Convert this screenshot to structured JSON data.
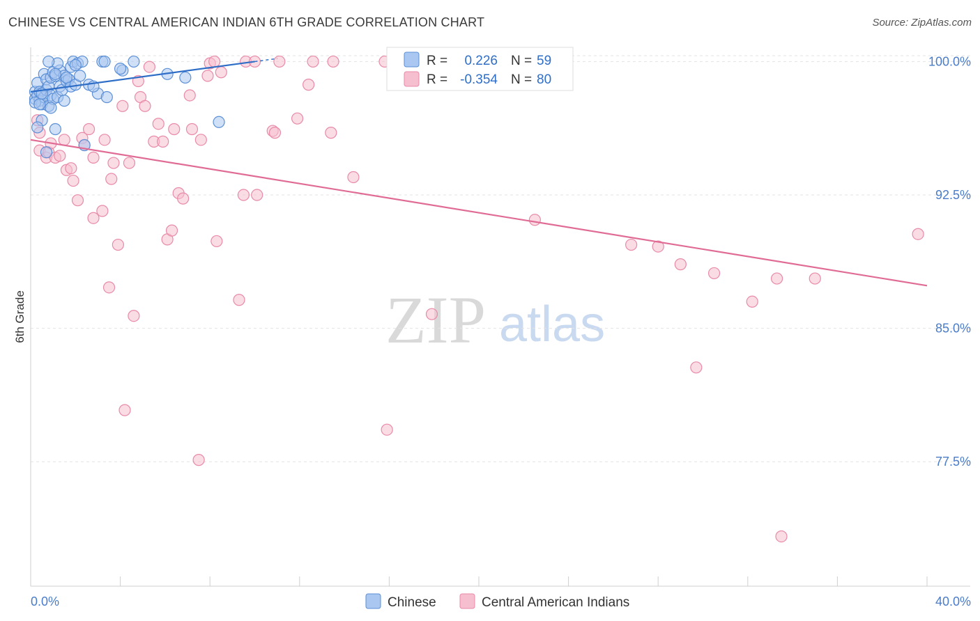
{
  "title": "CHINESE VS CENTRAL AMERICAN INDIAN 6TH GRADE CORRELATION CHART",
  "source": "Source: ZipAtlas.com",
  "colors": {
    "chinese_fill": "#a9c7f0",
    "chinese_stroke": "#5b8fd6",
    "chinese_line": "#2f6ec7",
    "cai_fill": "#f6bfd0",
    "cai_stroke": "#e88aa8",
    "cai_line": "#e06b95",
    "grid": "#e3e3e3",
    "axis_text": "#4a7cc9"
  },
  "watermark": {
    "zip": "ZIP",
    "atlas": "atlas"
  },
  "legend": {
    "r_label": "R =",
    "n_label": "N =",
    "chinese": {
      "r": "0.226",
      "n": "59"
    },
    "cai": {
      "r": "-0.354",
      "n": "80"
    }
  },
  "bottom_legend": [
    "Chinese",
    "Central American Indians"
  ],
  "chart_data": {
    "type": "scatter",
    "xlabel": "",
    "ylabel": "6th Grade",
    "xlim": [
      0,
      40
    ],
    "ylim": [
      70.5,
      100.8
    ],
    "x_tick_labels": [
      "0.0%",
      "40.0%"
    ],
    "y_ticks": [
      77.5,
      85.0,
      92.5,
      100.0
    ],
    "y_tick_labels": [
      "77.5%",
      "85.0%",
      "92.5%",
      "100.0%"
    ],
    "grid": true,
    "series": [
      {
        "name": "Chinese",
        "trend": {
          "x": [
            0.0,
            10.0
          ],
          "y": [
            98.3,
            100.0
          ]
        },
        "points": [
          [
            0.2,
            98.3
          ],
          [
            0.2,
            97.9
          ],
          [
            0.3,
            98.1
          ],
          [
            0.3,
            98.8
          ],
          [
            0.4,
            98.3
          ],
          [
            0.4,
            97.8
          ],
          [
            0.5,
            97.6
          ],
          [
            0.5,
            96.7
          ],
          [
            0.6,
            99.3
          ],
          [
            0.6,
            98.0
          ],
          [
            0.7,
            98.4
          ],
          [
            0.7,
            99.0
          ],
          [
            0.8,
            98.6
          ],
          [
            0.8,
            97.5
          ],
          [
            0.9,
            99.1
          ],
          [
            0.9,
            98.1
          ],
          [
            1.0,
            99.4
          ],
          [
            1.0,
            97.9
          ],
          [
            1.1,
            99.2
          ],
          [
            1.1,
            96.2
          ],
          [
            1.2,
            98.0
          ],
          [
            1.3,
            98.6
          ],
          [
            1.3,
            99.5
          ],
          [
            1.4,
            98.4
          ],
          [
            1.5,
            99.2
          ],
          [
            1.5,
            97.8
          ],
          [
            1.6,
            98.9
          ],
          [
            1.7,
            99.0
          ],
          [
            1.8,
            98.6
          ],
          [
            1.8,
            99.7
          ],
          [
            1.9,
            100.0
          ],
          [
            2.0,
            98.7
          ],
          [
            2.1,
            99.9
          ],
          [
            2.2,
            99.2
          ],
          [
            2.3,
            100.0
          ],
          [
            2.4,
            95.3
          ],
          [
            2.6,
            98.7
          ],
          [
            3.0,
            98.2
          ],
          [
            3.2,
            100.0
          ],
          [
            3.4,
            98.0
          ],
          [
            4.1,
            99.5
          ],
          [
            4.6,
            100.0
          ],
          [
            6.1,
            99.3
          ],
          [
            6.9,
            99.1
          ],
          [
            8.4,
            96.6
          ],
          [
            0.3,
            96.3
          ],
          [
            0.2,
            97.7
          ],
          [
            0.4,
            97.6
          ],
          [
            0.5,
            98.2
          ],
          [
            0.7,
            94.9
          ],
          [
            0.9,
            97.4
          ],
          [
            1.2,
            99.9
          ],
          [
            1.6,
            99.1
          ],
          [
            2.0,
            99.8
          ],
          [
            3.3,
            100.0
          ],
          [
            4.0,
            99.6
          ],
          [
            1.1,
            99.3
          ],
          [
            0.8,
            100.0
          ],
          [
            2.8,
            98.6
          ]
        ]
      },
      {
        "name": "Central American Indians",
        "trend": {
          "x": [
            0.0,
            40.0
          ],
          "y": [
            95.6,
            87.4
          ]
        },
        "points": [
          [
            0.3,
            96.7
          ],
          [
            0.4,
            96.0
          ],
          [
            0.4,
            95.0
          ],
          [
            0.7,
            94.6
          ],
          [
            0.8,
            94.9
          ],
          [
            0.9,
            95.4
          ],
          [
            1.1,
            94.6
          ],
          [
            1.3,
            94.7
          ],
          [
            1.5,
            95.6
          ],
          [
            1.6,
            93.9
          ],
          [
            1.8,
            94.0
          ],
          [
            1.9,
            93.3
          ],
          [
            2.1,
            92.2
          ],
          [
            2.3,
            95.7
          ],
          [
            2.4,
            95.3
          ],
          [
            2.6,
            96.2
          ],
          [
            2.8,
            94.6
          ],
          [
            2.8,
            91.2
          ],
          [
            3.2,
            91.6
          ],
          [
            3.3,
            95.6
          ],
          [
            3.5,
            87.3
          ],
          [
            3.6,
            93.4
          ],
          [
            3.7,
            94.3
          ],
          [
            3.9,
            89.7
          ],
          [
            4.1,
            97.5
          ],
          [
            4.2,
            80.4
          ],
          [
            4.4,
            94.3
          ],
          [
            4.6,
            85.7
          ],
          [
            4.8,
            98.9
          ],
          [
            4.9,
            98.0
          ],
          [
            5.1,
            97.5
          ],
          [
            5.3,
            99.7
          ],
          [
            5.5,
            95.5
          ],
          [
            5.7,
            96.5
          ],
          [
            5.9,
            95.5
          ],
          [
            6.1,
            90.0
          ],
          [
            6.3,
            90.5
          ],
          [
            6.4,
            96.2
          ],
          [
            6.6,
            92.6
          ],
          [
            6.8,
            92.3
          ],
          [
            7.1,
            98.1
          ],
          [
            7.2,
            96.2
          ],
          [
            7.5,
            77.6
          ],
          [
            7.6,
            95.6
          ],
          [
            7.9,
            99.2
          ],
          [
            8.0,
            99.9
          ],
          [
            8.3,
            89.9
          ],
          [
            8.5,
            99.4
          ],
          [
            9.3,
            86.6
          ],
          [
            9.5,
            92.5
          ],
          [
            9.6,
            100.0
          ],
          [
            10.1,
            92.5
          ],
          [
            10.0,
            100.0
          ],
          [
            10.8,
            96.1
          ],
          [
            10.9,
            96.0
          ],
          [
            11.1,
            100.0
          ],
          [
            11.9,
            96.8
          ],
          [
            12.4,
            98.7
          ],
          [
            12.6,
            100.0
          ],
          [
            13.4,
            96.0
          ],
          [
            13.5,
            100.0
          ],
          [
            14.4,
            93.5
          ],
          [
            15.8,
            100.0
          ],
          [
            15.9,
            79.3
          ],
          [
            17.2,
            100.0
          ],
          [
            17.9,
            85.8
          ],
          [
            18.7,
            100.0
          ],
          [
            22.5,
            91.1
          ],
          [
            22.9,
            100.0
          ],
          [
            26.8,
            89.7
          ],
          [
            28.0,
            89.6
          ],
          [
            29.0,
            88.6
          ],
          [
            29.7,
            82.8
          ],
          [
            30.5,
            88.1
          ],
          [
            32.2,
            86.5
          ],
          [
            33.3,
            87.8
          ],
          [
            33.5,
            73.3
          ],
          [
            35.0,
            87.8
          ],
          [
            39.6,
            90.3
          ],
          [
            8.2,
            100.0
          ]
        ]
      }
    ]
  }
}
